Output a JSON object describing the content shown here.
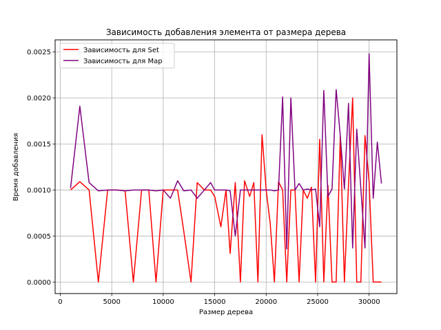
{
  "chart_data": {
    "type": "line",
    "title": "Зависимость добавления элемента от размера дерева",
    "xlabel": "Размер дерева",
    "ylabel": "Время добавления",
    "xlim": [
      -500,
      32700
    ],
    "ylim": [
      -0.000125,
      0.00263
    ],
    "xticks": [
      0,
      5000,
      10000,
      15000,
      20000,
      25000,
      30000
    ],
    "xtick_labels": [
      "0",
      "5000",
      "10000",
      "15000",
      "20000",
      "25000",
      "30000"
    ],
    "yticks": [
      0.0,
      0.0005,
      0.001,
      0.0015,
      0.002,
      0.0025
    ],
    "ytick_labels": [
      "0.0000",
      "0.0005",
      "0.0010",
      "0.0015",
      "0.0020",
      "0.0025"
    ],
    "grid": true,
    "legend_position": "top-left",
    "series": [
      {
        "name": "Зависимость для Set",
        "color": "#ff0000",
        "x": [
          1000,
          1900,
          2800,
          3700,
          4600,
          5500,
          6300,
          7100,
          7900,
          8600,
          9300,
          10000,
          10700,
          11400,
          12000,
          12700,
          13300,
          14000,
          14600,
          15000,
          15600,
          16100,
          16500,
          17000,
          17500,
          17900,
          18400,
          18800,
          19200,
          19600,
          20000,
          20400,
          20800,
          21200,
          21600,
          22000,
          22400,
          22800,
          23200,
          23600,
          24000,
          24400,
          24800,
          25200,
          25600,
          26000,
          26400,
          26800,
          27200,
          27600,
          28000,
          28400,
          28800,
          29200,
          29600,
          30000,
          30400,
          30800,
          31200
        ],
        "y": [
          0.001,
          0.00109,
          0.001,
          0.0,
          0.001,
          0.001,
          0.00099,
          0.0,
          0.001,
          0.001,
          0.0,
          0.001,
          0.001,
          0.001,
          0.00055,
          0.0,
          0.00108,
          0.001,
          0.001,
          0.00093,
          0.0006,
          0.001,
          0.00031,
          0.00108,
          0.0,
          0.0011,
          0.00093,
          0.00108,
          0.0,
          0.0016,
          0.001,
          0.00063,
          0.0,
          0.00109,
          0.001,
          0.0,
          0.001,
          0.001,
          0.0,
          0.001,
          0.00091,
          0.00103,
          0.0,
          0.00155,
          0.0,
          0.00105,
          0.0,
          0.0,
          0.00159,
          0.0,
          0.00106,
          0.002,
          0.0,
          0.0,
          0.00159,
          0.00109,
          0.0,
          0.0,
          0.0
        ]
      },
      {
        "name": "Зависимость для Map",
        "color": "#800080",
        "x": [
          1000,
          1900,
          2800,
          3700,
          4600,
          5500,
          6300,
          7100,
          7900,
          8600,
          9300,
          10000,
          10700,
          11400,
          12000,
          12700,
          13300,
          14000,
          14600,
          15000,
          15600,
          16100,
          16500,
          17000,
          17500,
          17900,
          18400,
          18800,
          19200,
          19600,
          20000,
          20400,
          20800,
          21200,
          21600,
          22000,
          22400,
          22800,
          23200,
          23600,
          24000,
          24400,
          24800,
          25200,
          25600,
          26000,
          26400,
          26800,
          27200,
          27600,
          28000,
          28400,
          28800,
          29200,
          29600,
          30000,
          30400,
          30800,
          31200
        ],
        "y": [
          0.00102,
          0.00191,
          0.00108,
          0.00099,
          0.001,
          0.001,
          0.00099,
          0.001,
          0.001,
          0.001,
          0.00099,
          0.001,
          0.00091,
          0.0011,
          0.00099,
          0.001,
          0.00091,
          0.001,
          0.00108,
          0.001,
          0.001,
          0.001,
          0.00099,
          0.0005,
          0.001,
          0.001,
          0.001,
          0.001,
          0.001,
          0.001,
          0.001,
          0.001,
          0.00099,
          0.001,
          0.00201,
          0.00036,
          0.002,
          0.001,
          0.00107,
          0.001,
          0.00101,
          0.001,
          0.00101,
          0.0006,
          0.00208,
          0.00093,
          0.00101,
          0.00209,
          0.00159,
          0.00101,
          0.00194,
          0.00037,
          0.00166,
          0.00101,
          0.00037,
          0.00248,
          0.00091,
          0.00152,
          0.00107
        ]
      }
    ]
  }
}
